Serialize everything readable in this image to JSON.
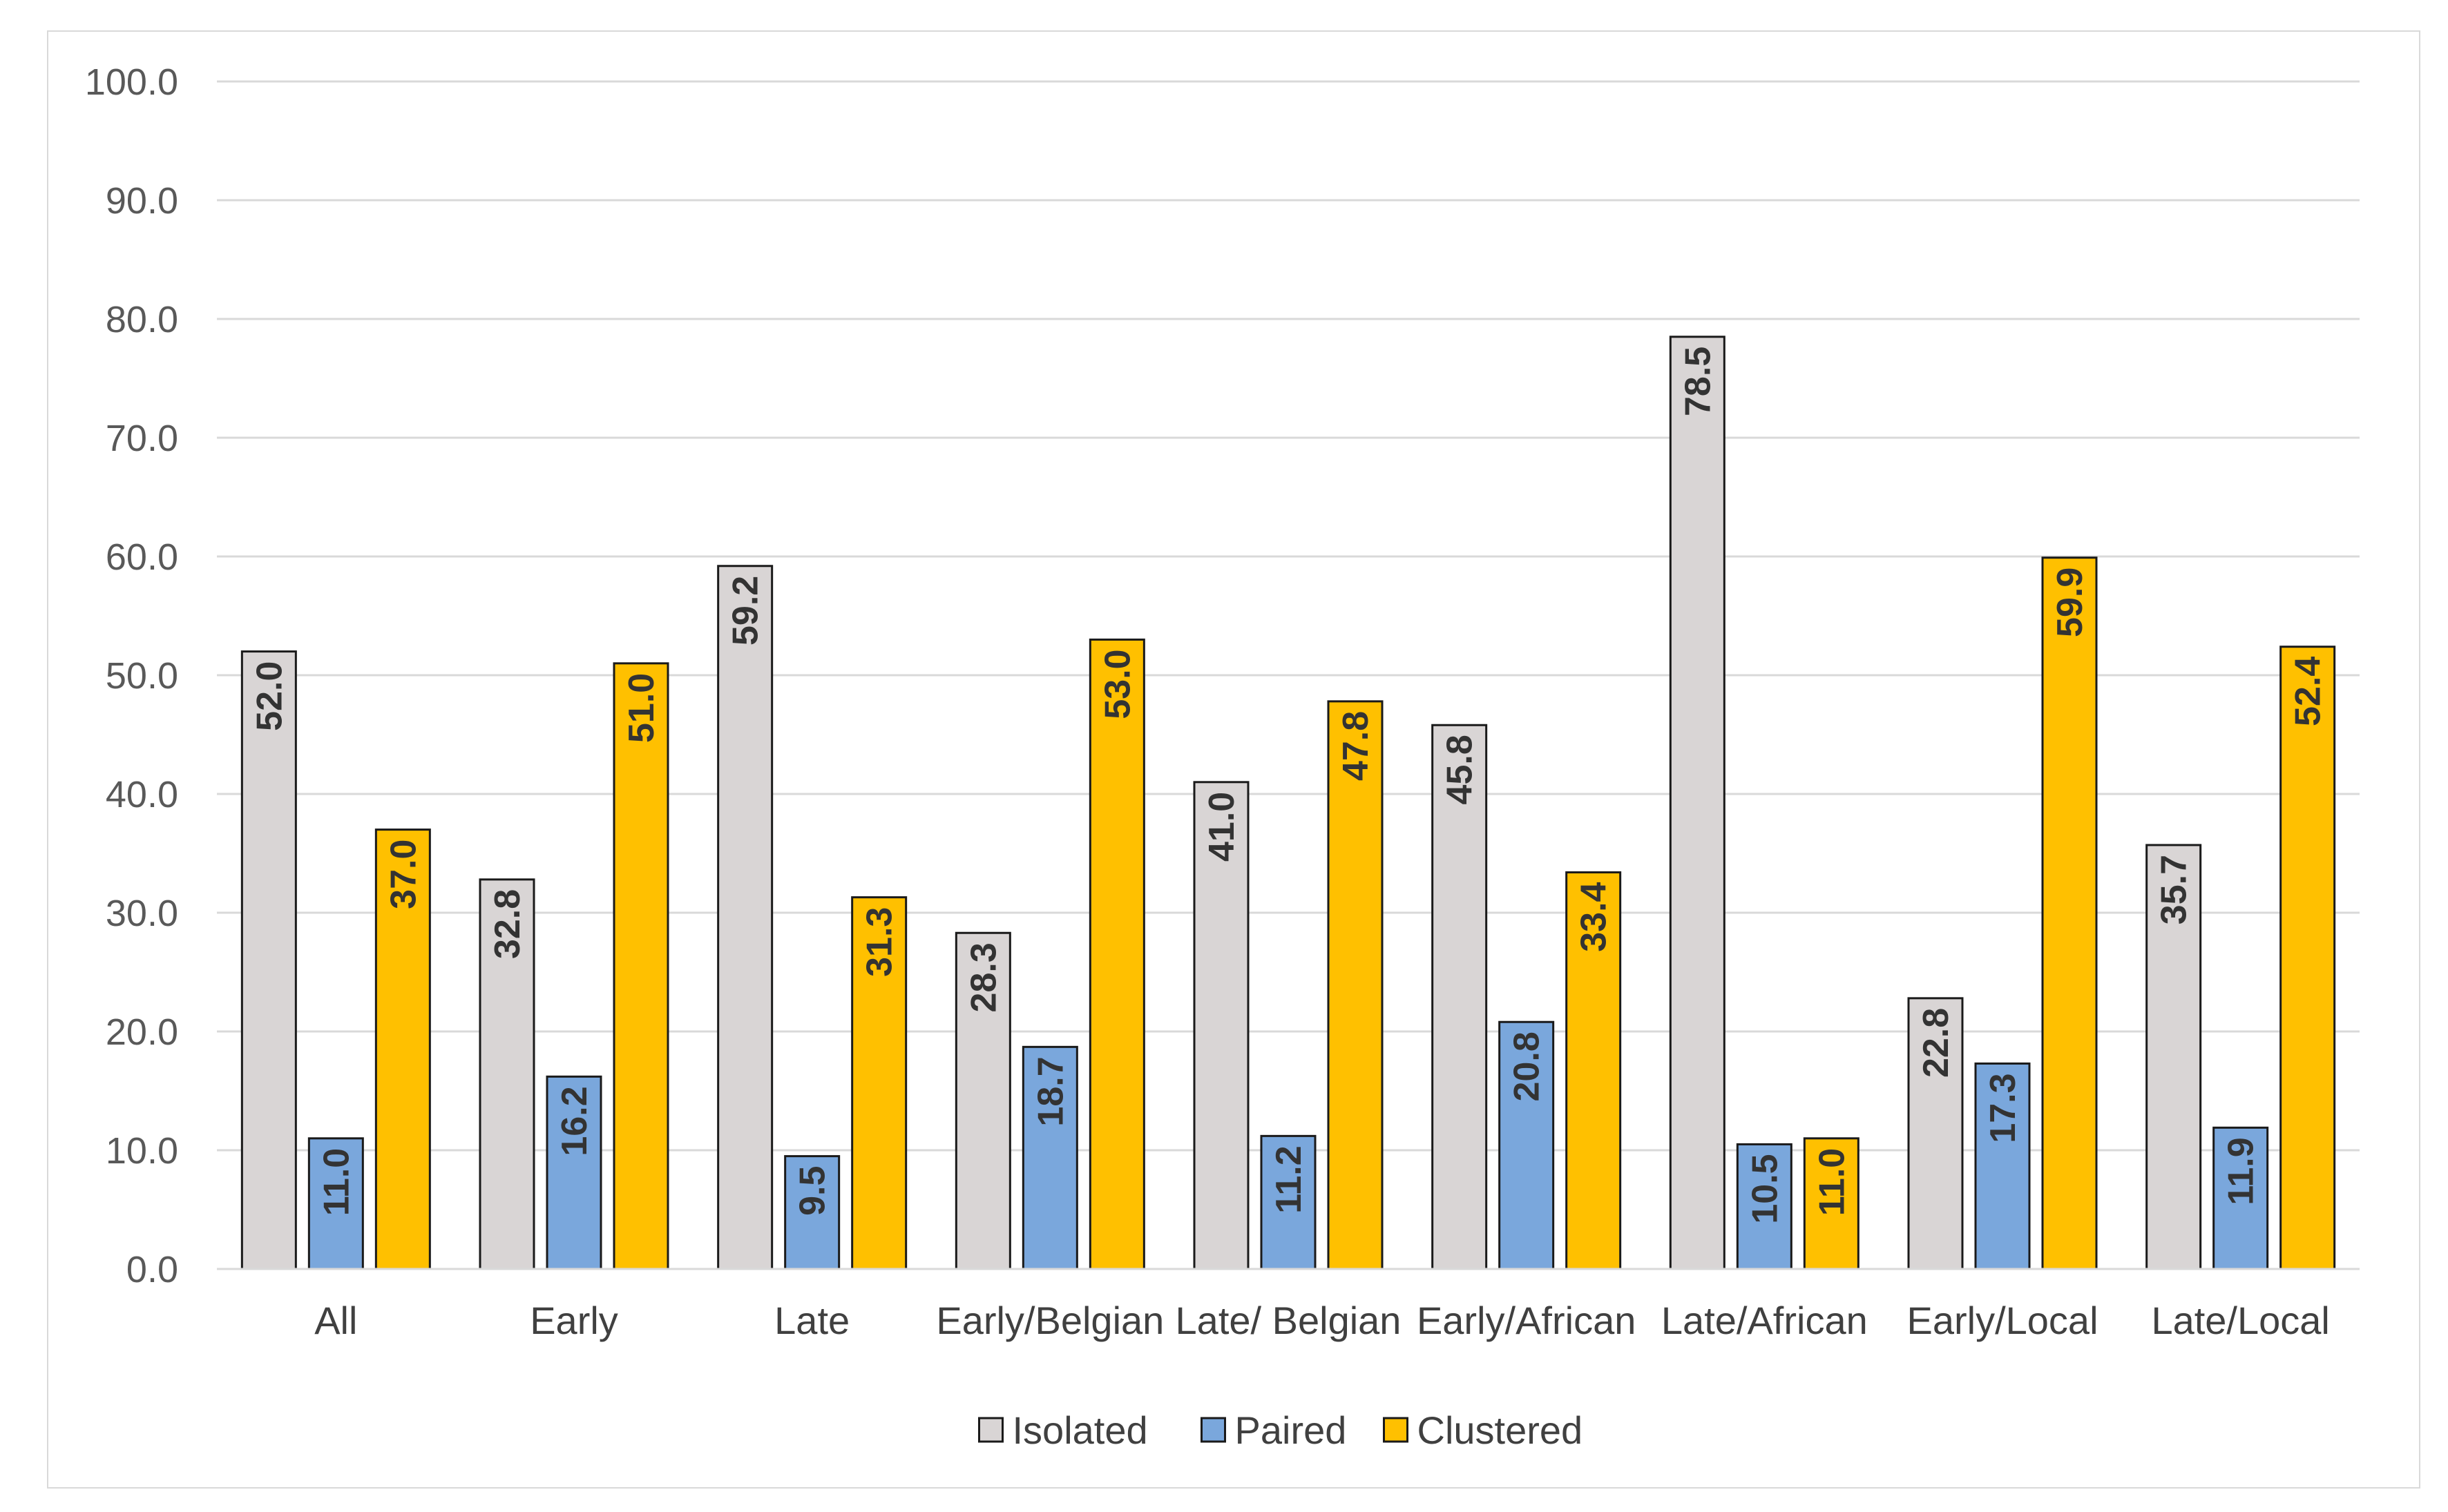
{
  "chart_data": {
    "type": "bar",
    "title": "",
    "xlabel": "",
    "ylabel": "",
    "ylim": [
      0,
      100
    ],
    "yticks": [
      "0.0",
      "10.0",
      "20.0",
      "30.0",
      "40.0",
      "50.0",
      "60.0",
      "70.0",
      "80.0",
      "90.0",
      "100.0"
    ],
    "grid": true,
    "legend_position": "bottom",
    "categories": [
      "All",
      "Early",
      "Late",
      "Early/Belgian",
      "Late/ Belgian",
      "Early/African",
      "Late/African",
      "Early/Local",
      "Late/Local"
    ],
    "series": [
      {
        "name": "Isolated",
        "color": "#d9d5d5",
        "values": [
          52.0,
          32.8,
          59.2,
          28.3,
          41.0,
          45.8,
          78.5,
          22.8,
          35.7
        ],
        "labels": [
          "52.0",
          "32.8",
          "59.2",
          "28.3",
          "41.0",
          "45.8",
          "78.5",
          "22.8",
          "35.7"
        ]
      },
      {
        "name": "Paired",
        "color": "#7aa7dc",
        "values": [
          11.0,
          16.2,
          9.5,
          18.7,
          11.2,
          20.8,
          10.5,
          17.3,
          11.9
        ],
        "labels": [
          "11.0",
          "16.2",
          "9.5",
          "18.7",
          "11.2",
          "20.8",
          "10.5",
          "17.3",
          "11.9"
        ]
      },
      {
        "name": "Clustered",
        "color": "#ffc000",
        "values": [
          37.0,
          51.0,
          31.3,
          53.0,
          47.8,
          33.4,
          11.0,
          59.9,
          52.4
        ],
        "labels": [
          "37.0",
          "51.0",
          "31.3",
          "53.0",
          "47.8",
          "33.4",
          "11.0",
          "59.9",
          "52.4"
        ]
      }
    ]
  }
}
